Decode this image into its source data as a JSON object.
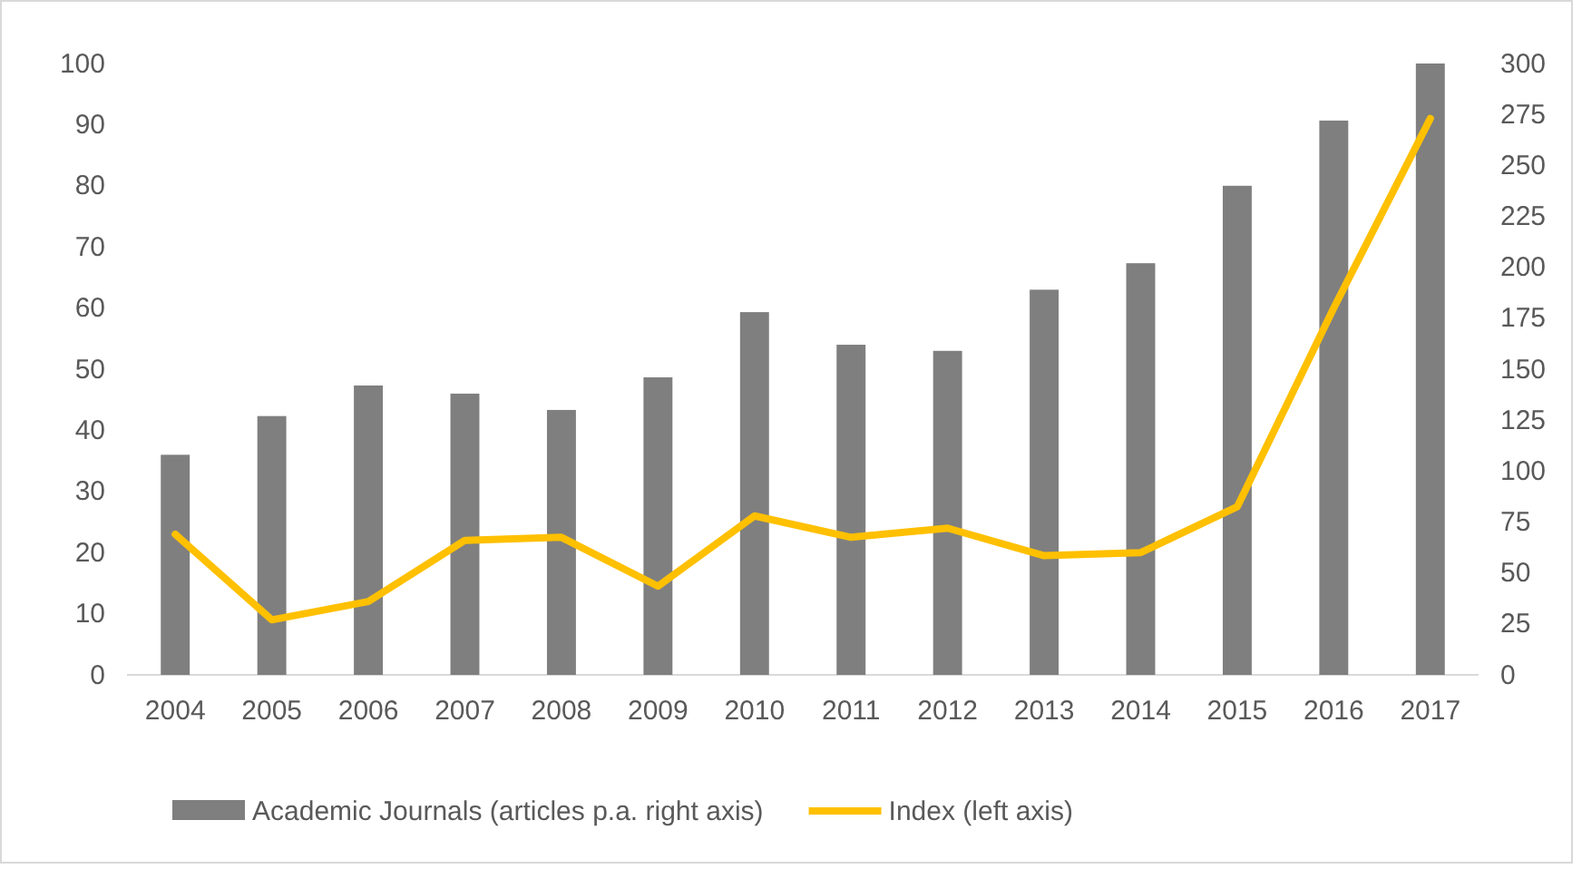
{
  "chart_data": {
    "type": "bar",
    "categories": [
      "2004",
      "2005",
      "2006",
      "2007",
      "2008",
      "2009",
      "2010",
      "2011",
      "2012",
      "2013",
      "2014",
      "2015",
      "2016",
      "2017"
    ],
    "series": [
      {
        "name": "Academic Journals (articles p.a. right axis)",
        "axis": "y2",
        "color": "#7f7f7f",
        "values": [
          108,
          127,
          142,
          138,
          130,
          146,
          178,
          162,
          159,
          189,
          202,
          240,
          272,
          300
        ]
      },
      {
        "name": "Index (left axis)",
        "type": "line",
        "axis": "y",
        "color": "#ffc000",
        "values": [
          23,
          9,
          12,
          22,
          22.5,
          14.5,
          26,
          22.5,
          24,
          19.5,
          20,
          27.5,
          60,
          91
        ]
      }
    ],
    "ylim": [
      0,
      100
    ],
    "yticks": [
      0,
      10,
      20,
      30,
      40,
      50,
      60,
      70,
      80,
      90,
      100
    ],
    "y2lim": [
      0,
      300
    ],
    "y2ticks": [
      0,
      25,
      50,
      75,
      100,
      125,
      150,
      175,
      200,
      225,
      250,
      275,
      300
    ],
    "legend": "bottom",
    "grid": false,
    "line_style": "solid",
    "marker": "none"
  }
}
